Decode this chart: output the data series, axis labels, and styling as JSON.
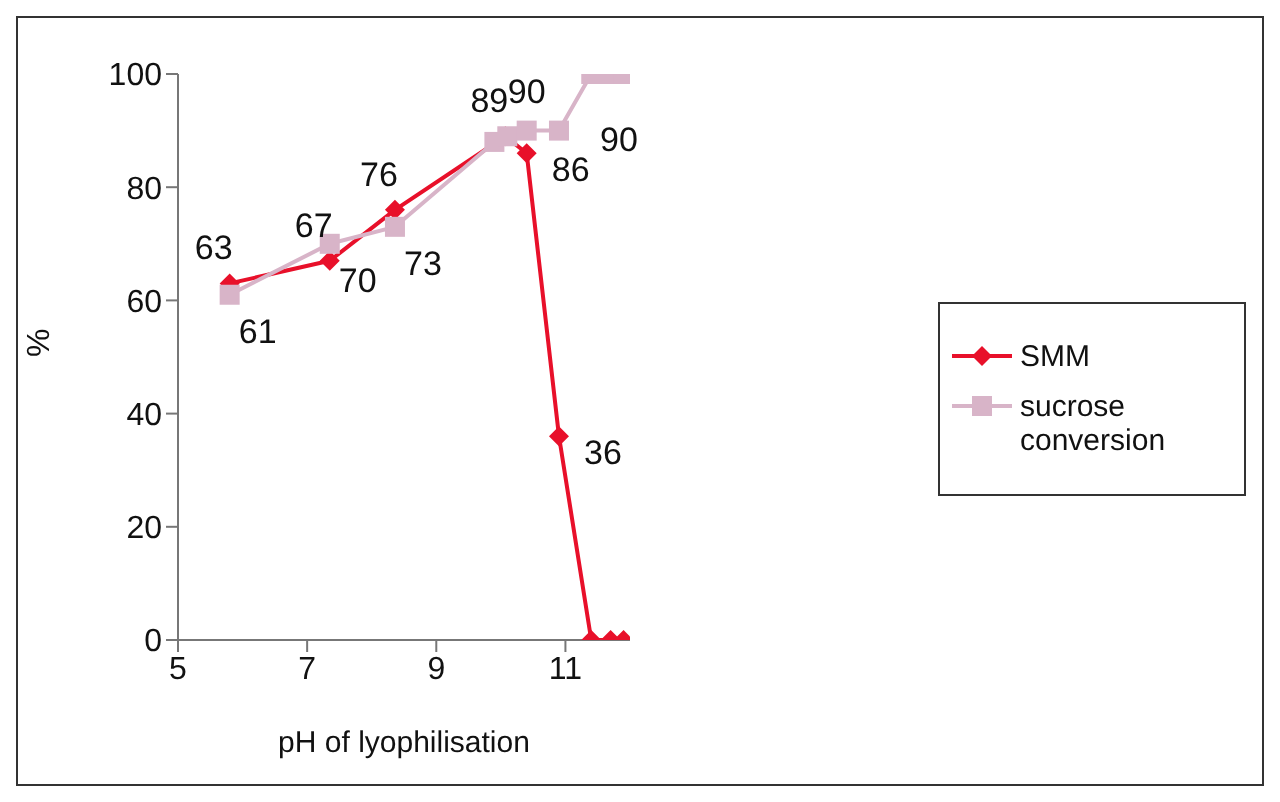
{
  "chart_data": {
    "type": "line",
    "xlabel": "pH of lyophilisation",
    "ylabel": "%",
    "xlim": [
      5,
      12
    ],
    "xticks": [
      5,
      7,
      9,
      11
    ],
    "ylim": [
      0,
      100
    ],
    "yticks": [
      0,
      20,
      40,
      60,
      80,
      100
    ],
    "grid": false,
    "legend": "right",
    "line_style": "solid",
    "series": [
      {
        "name": "SMM",
        "color": "#e8102a",
        "marker": "diamond",
        "x": [
          5.8,
          7.35,
          8.36,
          10.07,
          10.4,
          10.9,
          11.4,
          11.7,
          11.9
        ],
        "values": [
          63,
          67,
          76,
          89,
          86,
          36,
          0,
          0,
          0
        ],
        "value_labels": [
          "63",
          "67",
          "76",
          "89",
          "86",
          "36",
          null,
          null,
          null
        ]
      },
      {
        "name": "sucrose conversion",
        "color": "#d8b4c8",
        "marker": "square",
        "x": [
          5.8,
          7.35,
          8.36,
          9.9,
          10.1,
          10.4,
          10.9,
          11.4,
          11.7,
          11.9
        ],
        "values": [
          61,
          70,
          73,
          88,
          89,
          90,
          90,
          100,
          100,
          100
        ],
        "value_labels": [
          "61",
          "70",
          "73",
          null,
          null,
          "90",
          "90",
          null,
          null,
          null
        ]
      }
    ]
  }
}
